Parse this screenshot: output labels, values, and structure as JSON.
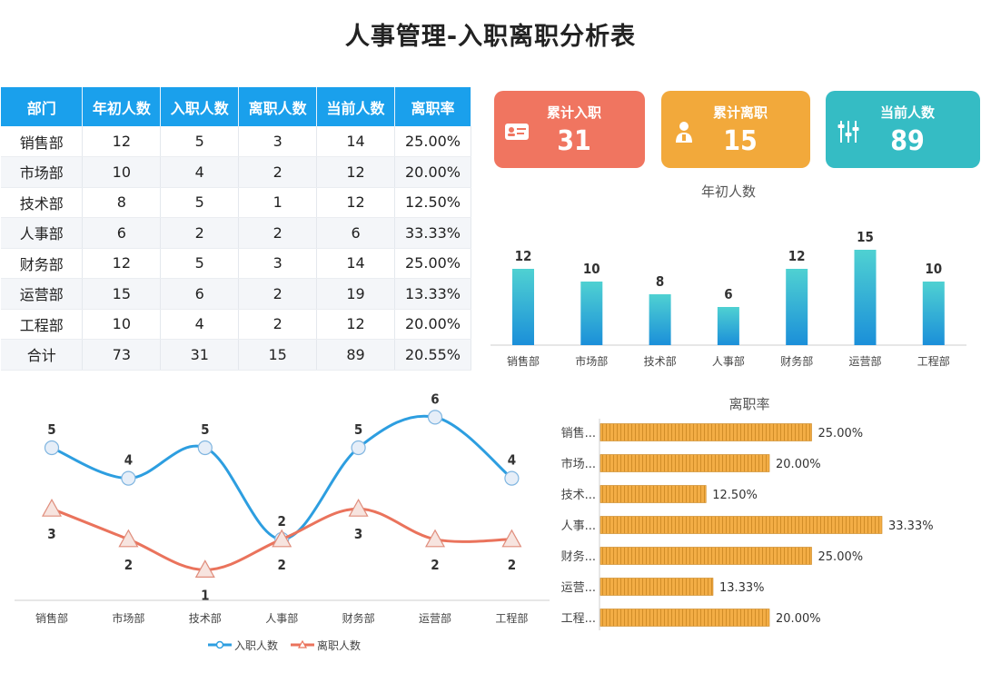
{
  "title": "人事管理-入职离职分析表",
  "table": {
    "headers": [
      "部门",
      "年初人数",
      "入职人数",
      "离职人数",
      "当前人数",
      "离职率"
    ],
    "rows": [
      [
        "销售部",
        "12",
        "5",
        "3",
        "14",
        "25.00%"
      ],
      [
        "市场部",
        "10",
        "4",
        "2",
        "12",
        "20.00%"
      ],
      [
        "技术部",
        "8",
        "5",
        "1",
        "12",
        "12.50%"
      ],
      [
        "人事部",
        "6",
        "2",
        "2",
        "6",
        "33.33%"
      ],
      [
        "财务部",
        "12",
        "5",
        "3",
        "14",
        "25.00%"
      ],
      [
        "运营部",
        "15",
        "6",
        "2",
        "19",
        "13.33%"
      ],
      [
        "工程部",
        "10",
        "4",
        "2",
        "12",
        "20.00%"
      ],
      [
        "合计",
        "73",
        "31",
        "15",
        "89",
        "20.55%"
      ]
    ]
  },
  "cards": [
    {
      "label": "累计入职",
      "value": "31",
      "color": "#f07560",
      "icon": "id-card-icon"
    },
    {
      "label": "累计离职",
      "value": "15",
      "color": "#f2a93b",
      "icon": "person-icon"
    },
    {
      "label": "当前人数",
      "value": "89",
      "color": "#35bcc4",
      "icon": "sliders-icon"
    }
  ],
  "chart_data": [
    {
      "type": "bar",
      "title": "年初人数",
      "categories": [
        "销售部",
        "市场部",
        "技术部",
        "人事部",
        "财务部",
        "运营部",
        "工程部"
      ],
      "values": [
        12,
        10,
        8,
        6,
        12,
        15,
        10
      ],
      "ylim": [
        0,
        15
      ]
    },
    {
      "type": "line",
      "title": "",
      "categories": [
        "销售部",
        "市场部",
        "技术部",
        "人事部",
        "财务部",
        "运营部",
        "工程部"
      ],
      "series": [
        {
          "name": "入职人数",
          "values": [
            5,
            4,
            5,
            2,
            5,
            6,
            4
          ],
          "color": "#2d9ee0"
        },
        {
          "name": "离职人数",
          "values": [
            3,
            2,
            1,
            2,
            3,
            2,
            2
          ],
          "color": "#ea735c"
        }
      ],
      "legend": "bottom",
      "ylim": [
        0,
        7
      ]
    },
    {
      "type": "bar",
      "orientation": "horizontal",
      "title": "离职率",
      "categories": [
        "销售...",
        "市场...",
        "技术...",
        "人事...",
        "财务...",
        "运营...",
        "工程..."
      ],
      "values": [
        25.0,
        20.0,
        12.5,
        33.33,
        25.0,
        13.33,
        20.0
      ],
      "labels": [
        "25.00%",
        "20.00%",
        "12.50%",
        "33.33%",
        "25.00%",
        "13.33%",
        "20.00%"
      ],
      "xlim": [
        0,
        33.33
      ]
    }
  ]
}
